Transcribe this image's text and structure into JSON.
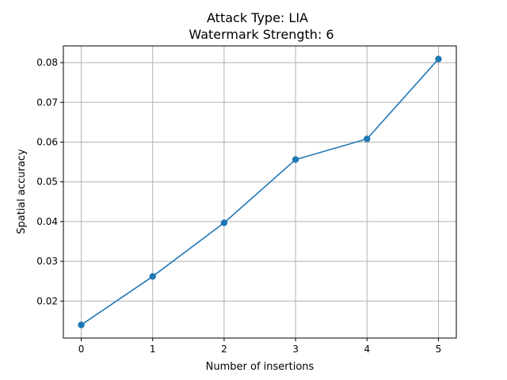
{
  "chart_data": {
    "type": "line",
    "title_line1": "Attack Type: LIA",
    "title_line2": "Watermark Strength: 6",
    "xlabel": "Number of insertions",
    "ylabel": "Spatial accuracy",
    "x": [
      0,
      1,
      2,
      3,
      4,
      5
    ],
    "series": [
      {
        "values": [
          0.014,
          0.0262,
          0.0397,
          0.0556,
          0.0608,
          0.0809
        ]
      }
    ],
    "xlim": [
      -0.25,
      5.25
    ],
    "ylim": [
      0.0107,
      0.0842
    ],
    "xticks": [
      0,
      1,
      2,
      3,
      4,
      5
    ],
    "xtick_labels": [
      "0",
      "1",
      "2",
      "3",
      "4",
      "5"
    ],
    "yticks": [
      0.02,
      0.03,
      0.04,
      0.05,
      0.06,
      0.07,
      0.08
    ],
    "ytick_labels": [
      "0.02",
      "0.03",
      "0.04",
      "0.05",
      "0.06",
      "0.07",
      "0.08"
    ],
    "grid": true,
    "colors": {
      "series": "#1f77b4",
      "grid": "#b0b0b0"
    }
  }
}
